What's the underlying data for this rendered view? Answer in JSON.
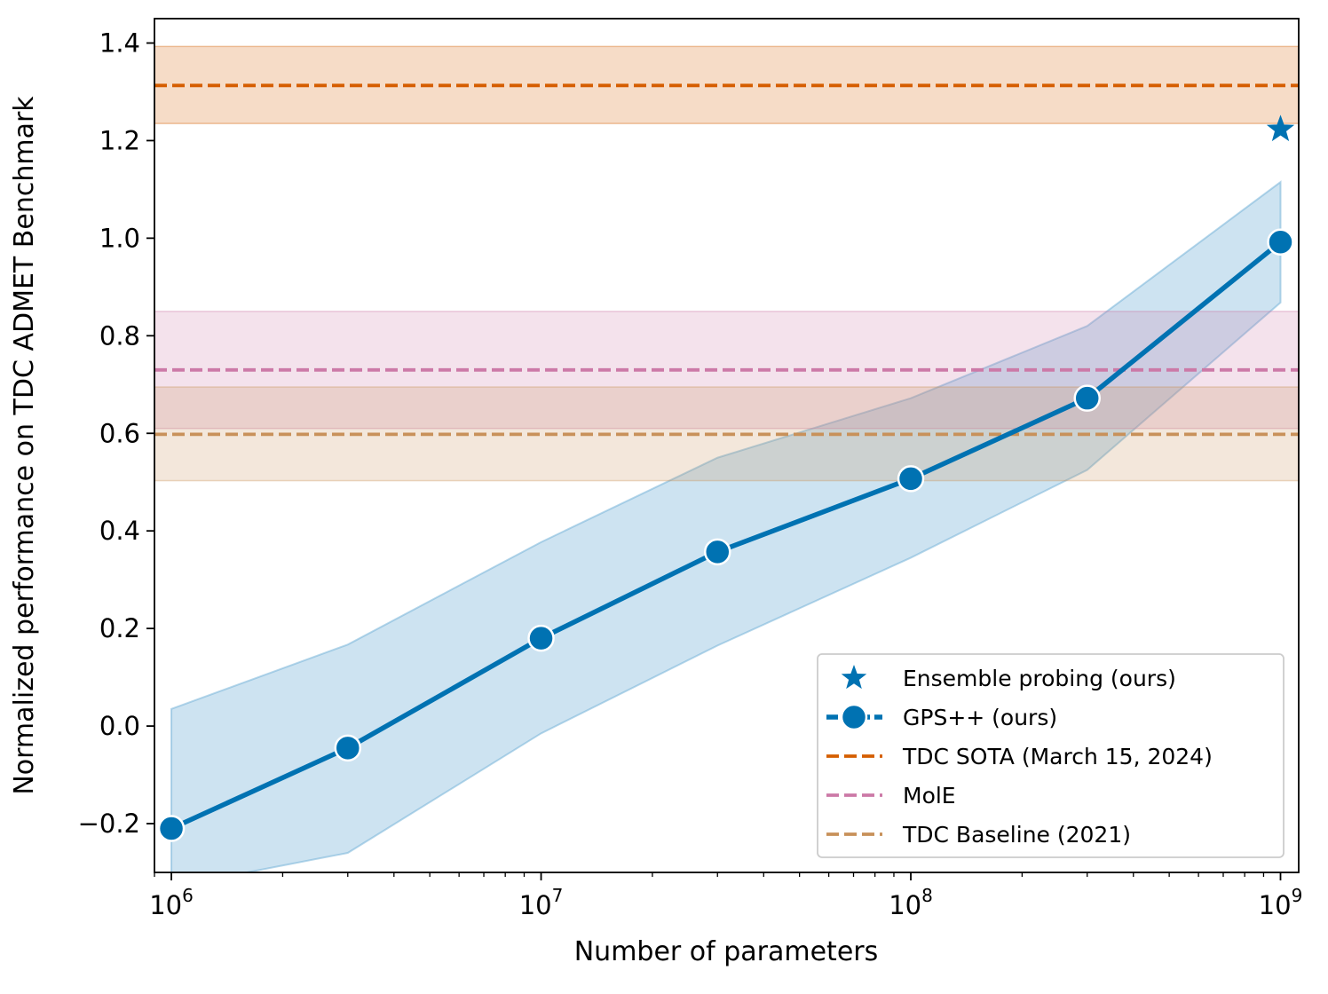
{
  "chart_data": {
    "type": "line",
    "xlabel": "Number of parameters",
    "ylabel": "Normalized performance on TDC ADMET Benchmark",
    "x_scale": "log",
    "xlim": [
      900000,
      1120000000
    ],
    "ylim": [
      -0.3,
      1.45
    ],
    "x_ticks": [
      {
        "value": 1000000,
        "base": "10",
        "exp": "6"
      },
      {
        "value": 10000000,
        "base": "10",
        "exp": "7"
      },
      {
        "value": 100000000,
        "base": "10",
        "exp": "8"
      },
      {
        "value": 1000000000,
        "base": "10",
        "exp": "9"
      }
    ],
    "y_ticks": [
      {
        "value": -0.2,
        "label": "−0.2"
      },
      {
        "value": 0.0,
        "label": "0.0"
      },
      {
        "value": 0.2,
        "label": "0.2"
      },
      {
        "value": 0.4,
        "label": "0.4"
      },
      {
        "value": 0.6,
        "label": "0.6"
      },
      {
        "value": 0.8,
        "label": "0.8"
      },
      {
        "value": 1.0,
        "label": "1.0"
      },
      {
        "value": 1.2,
        "label": "1.2"
      },
      {
        "value": 1.4,
        "label": "1.4"
      }
    ],
    "grid": false,
    "legend_position": "lower-right",
    "series": [
      {
        "name": "GPS++ (ours)",
        "kind": "line-markers",
        "color": "#0072b2",
        "x": [
          1000000,
          3000000,
          10000000,
          30000000,
          100000000,
          300000000,
          1000000000
        ],
        "y": [
          -0.21,
          -0.045,
          0.18,
          0.357,
          0.507,
          0.672,
          0.992
        ],
        "band_lower": [
          -0.33,
          -0.26,
          -0.015,
          0.165,
          0.345,
          0.525,
          0.868
        ],
        "band_upper": [
          0.035,
          0.167,
          0.377,
          0.55,
          0.672,
          0.82,
          1.115
        ]
      },
      {
        "name": "Ensemble probing (ours)",
        "kind": "star",
        "color": "#0072b2",
        "x": [
          1000000000
        ],
        "y": [
          1.223
        ]
      },
      {
        "name": "TDC SOTA (March 15, 2024)",
        "kind": "hline",
        "color": "#d55e00",
        "y": 1.313,
        "band": [
          1.235,
          1.393
        ]
      },
      {
        "name": "MolE",
        "kind": "hline",
        "color": "#cc79a7",
        "y": 0.73,
        "band": [
          0.61,
          0.85
        ]
      },
      {
        "name": "TDC Baseline (2021)",
        "kind": "hline",
        "color": "#c8915a",
        "y": 0.598,
        "band": [
          0.503,
          0.695
        ]
      }
    ],
    "legend": [
      {
        "label": "Ensemble probing (ours)",
        "kind": "star",
        "color": "#0072b2"
      },
      {
        "label": "GPS++ (ours)",
        "kind": "line-markers",
        "color": "#0072b2"
      },
      {
        "label": "TDC SOTA (March 15, 2024)",
        "kind": "hline",
        "color": "#d55e00"
      },
      {
        "label": "MolE",
        "kind": "hline",
        "color": "#cc79a7"
      },
      {
        "label": "TDC Baseline (2021)",
        "kind": "hline",
        "color": "#c8915a"
      }
    ]
  }
}
